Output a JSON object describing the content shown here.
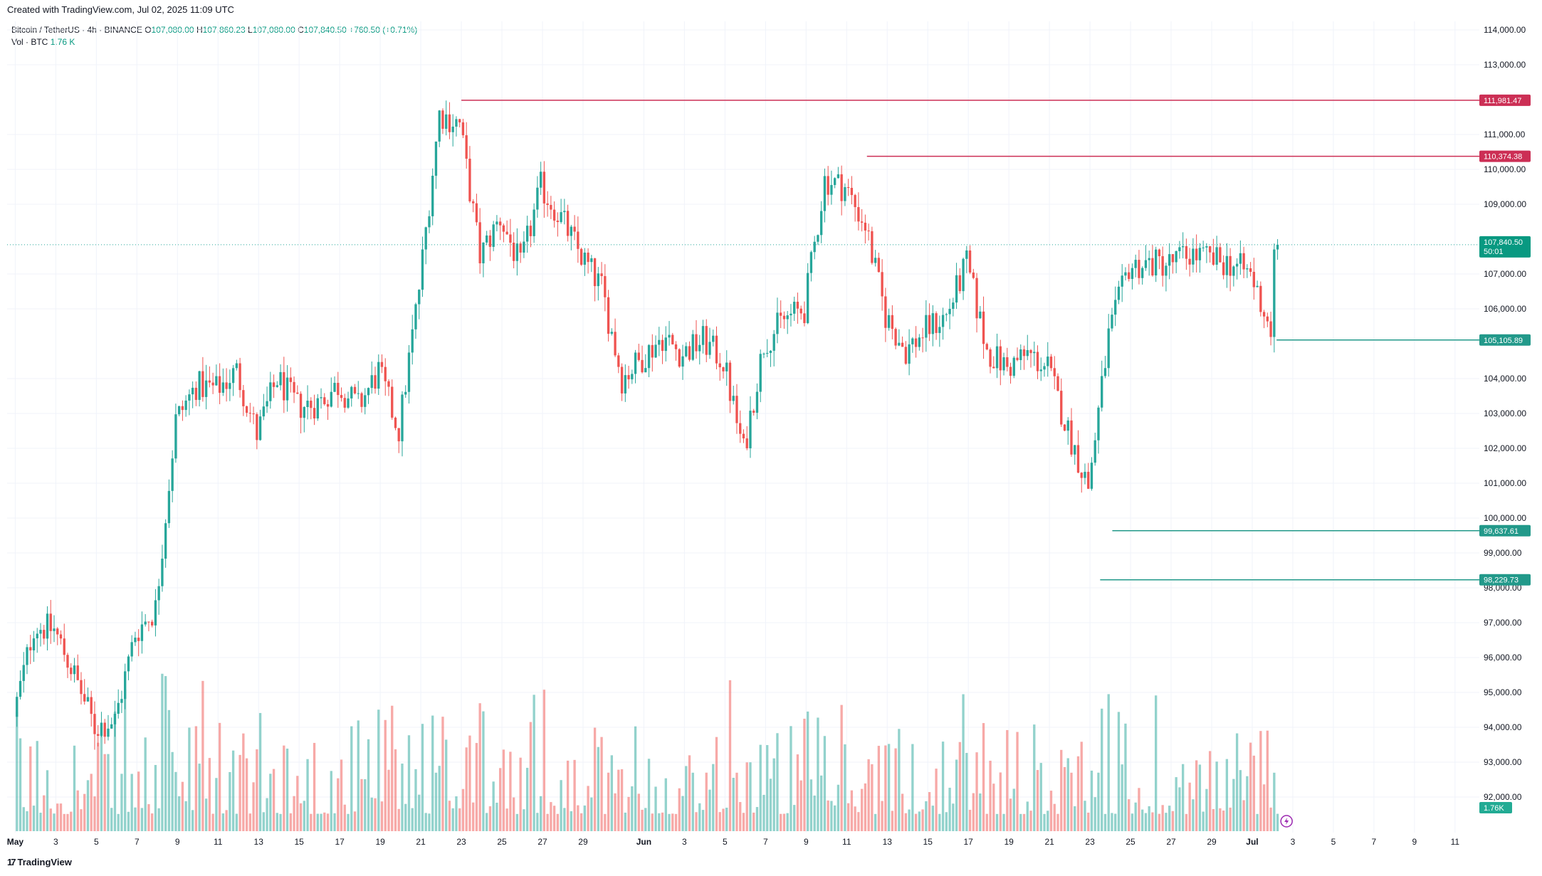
{
  "header": {
    "created": "Created with TradingView.com, Jul 02, 2025 11:09 UTC"
  },
  "legend": {
    "symbol": "Bitcoin / TetherUS · 4h · BINANCE",
    "open_label": "O",
    "open": "107,080.00",
    "high_label": "H",
    "high": "107,860.23",
    "low_label": "L",
    "low": "107,080.00",
    "close_label": "C",
    "close": "107,840.50",
    "change": "+760.50 (+0.71%)",
    "vol_label": "Vol · BTC",
    "vol": "1.76 K"
  },
  "footer": {
    "brand": "TradingView"
  },
  "colors": {
    "up": "#26a69a",
    "down": "#ef5350",
    "resistance": "#cc2f55",
    "support": "#22998a",
    "grid": "#f0f3fa",
    "text": "#131722"
  },
  "chart_data": {
    "type": "candlestick",
    "symbol": "BTCUSDT",
    "timeframe": "4h",
    "ylim": [
      91600,
      114200
    ],
    "y_ticks": [
      114000,
      113000,
      111000,
      110000,
      109000,
      107000,
      106000,
      104000,
      103000,
      102000,
      101000,
      100000,
      99000,
      98000,
      97000,
      96000,
      95000,
      94000,
      93000,
      92000
    ],
    "y_tick_labels": [
      "114,000.00",
      "113,000.00",
      "111,000.00",
      "110,000.00",
      "109,000.00",
      "107,000.00",
      "106,000.00",
      "104,000.00",
      "103,000.00",
      "102,000.00",
      "101,000.00",
      "100,000.00",
      "99,000.00",
      "98,000.00",
      "97,000.00",
      "96,000.00",
      "95,000.00",
      "94,000.00",
      "93,000.00",
      "92,000.00"
    ],
    "x_tick_labels": [
      "May",
      "3",
      "5",
      "7",
      "9",
      "11",
      "13",
      "15",
      "17",
      "19",
      "21",
      "23",
      "25",
      "27",
      "29",
      "Jun",
      "3",
      "5",
      "7",
      "9",
      "11",
      "13",
      "15",
      "17",
      "19",
      "21",
      "23",
      "25",
      "27",
      "29",
      "Jul",
      "3",
      "5",
      "7",
      "9",
      "11"
    ],
    "x_tick_days": [
      0,
      2,
      4,
      6,
      8,
      10,
      12,
      14,
      16,
      18,
      20,
      22,
      24,
      26,
      28,
      31,
      33,
      35,
      37,
      39,
      41,
      43,
      45,
      47,
      49,
      51,
      53,
      55,
      57,
      59,
      61,
      63,
      65,
      67,
      69,
      71
    ],
    "x_range_days": [
      -0.4,
      72.2
    ],
    "bars_per_day": 6,
    "keypoints": [
      {
        "day": 0,
        "price": 94300
      },
      {
        "day": 1,
        "price": 96900
      },
      {
        "day": 2,
        "price": 96800
      },
      {
        "day": 3,
        "price": 95500
      },
      {
        "day": 4,
        "price": 94000
      },
      {
        "day": 5,
        "price": 94200
      },
      {
        "day": 6,
        "price": 96700
      },
      {
        "day": 7,
        "price": 97400
      },
      {
        "day": 8,
        "price": 102800
      },
      {
        "day": 9,
        "price": 103800
      },
      {
        "day": 10,
        "price": 103700
      },
      {
        "day": 11,
        "price": 104200
      },
      {
        "day": 12,
        "price": 102400
      },
      {
        "day": 13,
        "price": 104000
      },
      {
        "day": 14,
        "price": 103200
      },
      {
        "day": 15,
        "price": 103300
      },
      {
        "day": 16,
        "price": 103800
      },
      {
        "day": 17,
        "price": 103200
      },
      {
        "day": 18,
        "price": 104200
      },
      {
        "day": 19,
        "price": 102500
      },
      {
        "day": 20,
        "price": 106600
      },
      {
        "day": 21,
        "price": 111600
      },
      {
        "day": 22,
        "price": 111300
      },
      {
        "day": 23,
        "price": 107500
      },
      {
        "day": 24,
        "price": 108600
      },
      {
        "day": 25,
        "price": 107200
      },
      {
        "day": 26,
        "price": 109500
      },
      {
        "day": 27,
        "price": 108600
      },
      {
        "day": 28,
        "price": 107500
      },
      {
        "day": 29,
        "price": 106600
      },
      {
        "day": 30,
        "price": 104000
      },
      {
        "day": 31,
        "price": 104600
      },
      {
        "day": 32,
        "price": 105200
      },
      {
        "day": 33,
        "price": 104700
      },
      {
        "day": 34,
        "price": 105100
      },
      {
        "day": 35,
        "price": 104500
      },
      {
        "day": 36,
        "price": 101900
      },
      {
        "day": 37,
        "price": 105000
      },
      {
        "day": 38,
        "price": 105700
      },
      {
        "day": 39,
        "price": 106000
      },
      {
        "day": 40,
        "price": 109700
      },
      {
        "day": 41,
        "price": 109500
      },
      {
        "day": 42,
        "price": 108400
      },
      {
        "day": 43,
        "price": 105800
      },
      {
        "day": 44,
        "price": 104800
      },
      {
        "day": 45,
        "price": 105400
      },
      {
        "day": 46,
        "price": 105800
      },
      {
        "day": 47,
        "price": 107300
      },
      {
        "day": 48,
        "price": 104800
      },
      {
        "day": 49,
        "price": 104300
      },
      {
        "day": 50,
        "price": 104700
      },
      {
        "day": 51,
        "price": 104300
      },
      {
        "day": 52,
        "price": 102500
      },
      {
        "day": 53,
        "price": 100900
      },
      {
        "day": 54,
        "price": 105200
      },
      {
        "day": 55,
        "price": 107200
      },
      {
        "day": 56,
        "price": 107300
      },
      {
        "day": 57,
        "price": 107300
      },
      {
        "day": 58,
        "price": 107600
      },
      {
        "day": 59,
        "price": 107400
      },
      {
        "day": 60,
        "price": 107300
      },
      {
        "day": 61,
        "price": 107000
      },
      {
        "day": 62,
        "price": 105400
      },
      {
        "day": 62.2,
        "price": 107840
      }
    ],
    "volume_axis_max": 6000,
    "last_volume_label": "1.76K",
    "last_close": 107840.5,
    "last_close_label": "107,840.50",
    "countdown": "50:01",
    "levels": [
      {
        "price": 111981.47,
        "label": "111,981.47",
        "kind": "resistance",
        "from_day": 22
      },
      {
        "price": 110374.38,
        "label": "110,374.38",
        "kind": "resistance",
        "from_day": 42
      },
      {
        "price": 105105.89,
        "label": "105,105.89",
        "kind": "support",
        "from_day": 62.2
      },
      {
        "price": 99637.61,
        "label": "99,637.61",
        "kind": "support",
        "from_day": 54.1
      },
      {
        "price": 98229.73,
        "label": "98,229.73",
        "kind": "support",
        "from_day": 53.5
      }
    ]
  }
}
